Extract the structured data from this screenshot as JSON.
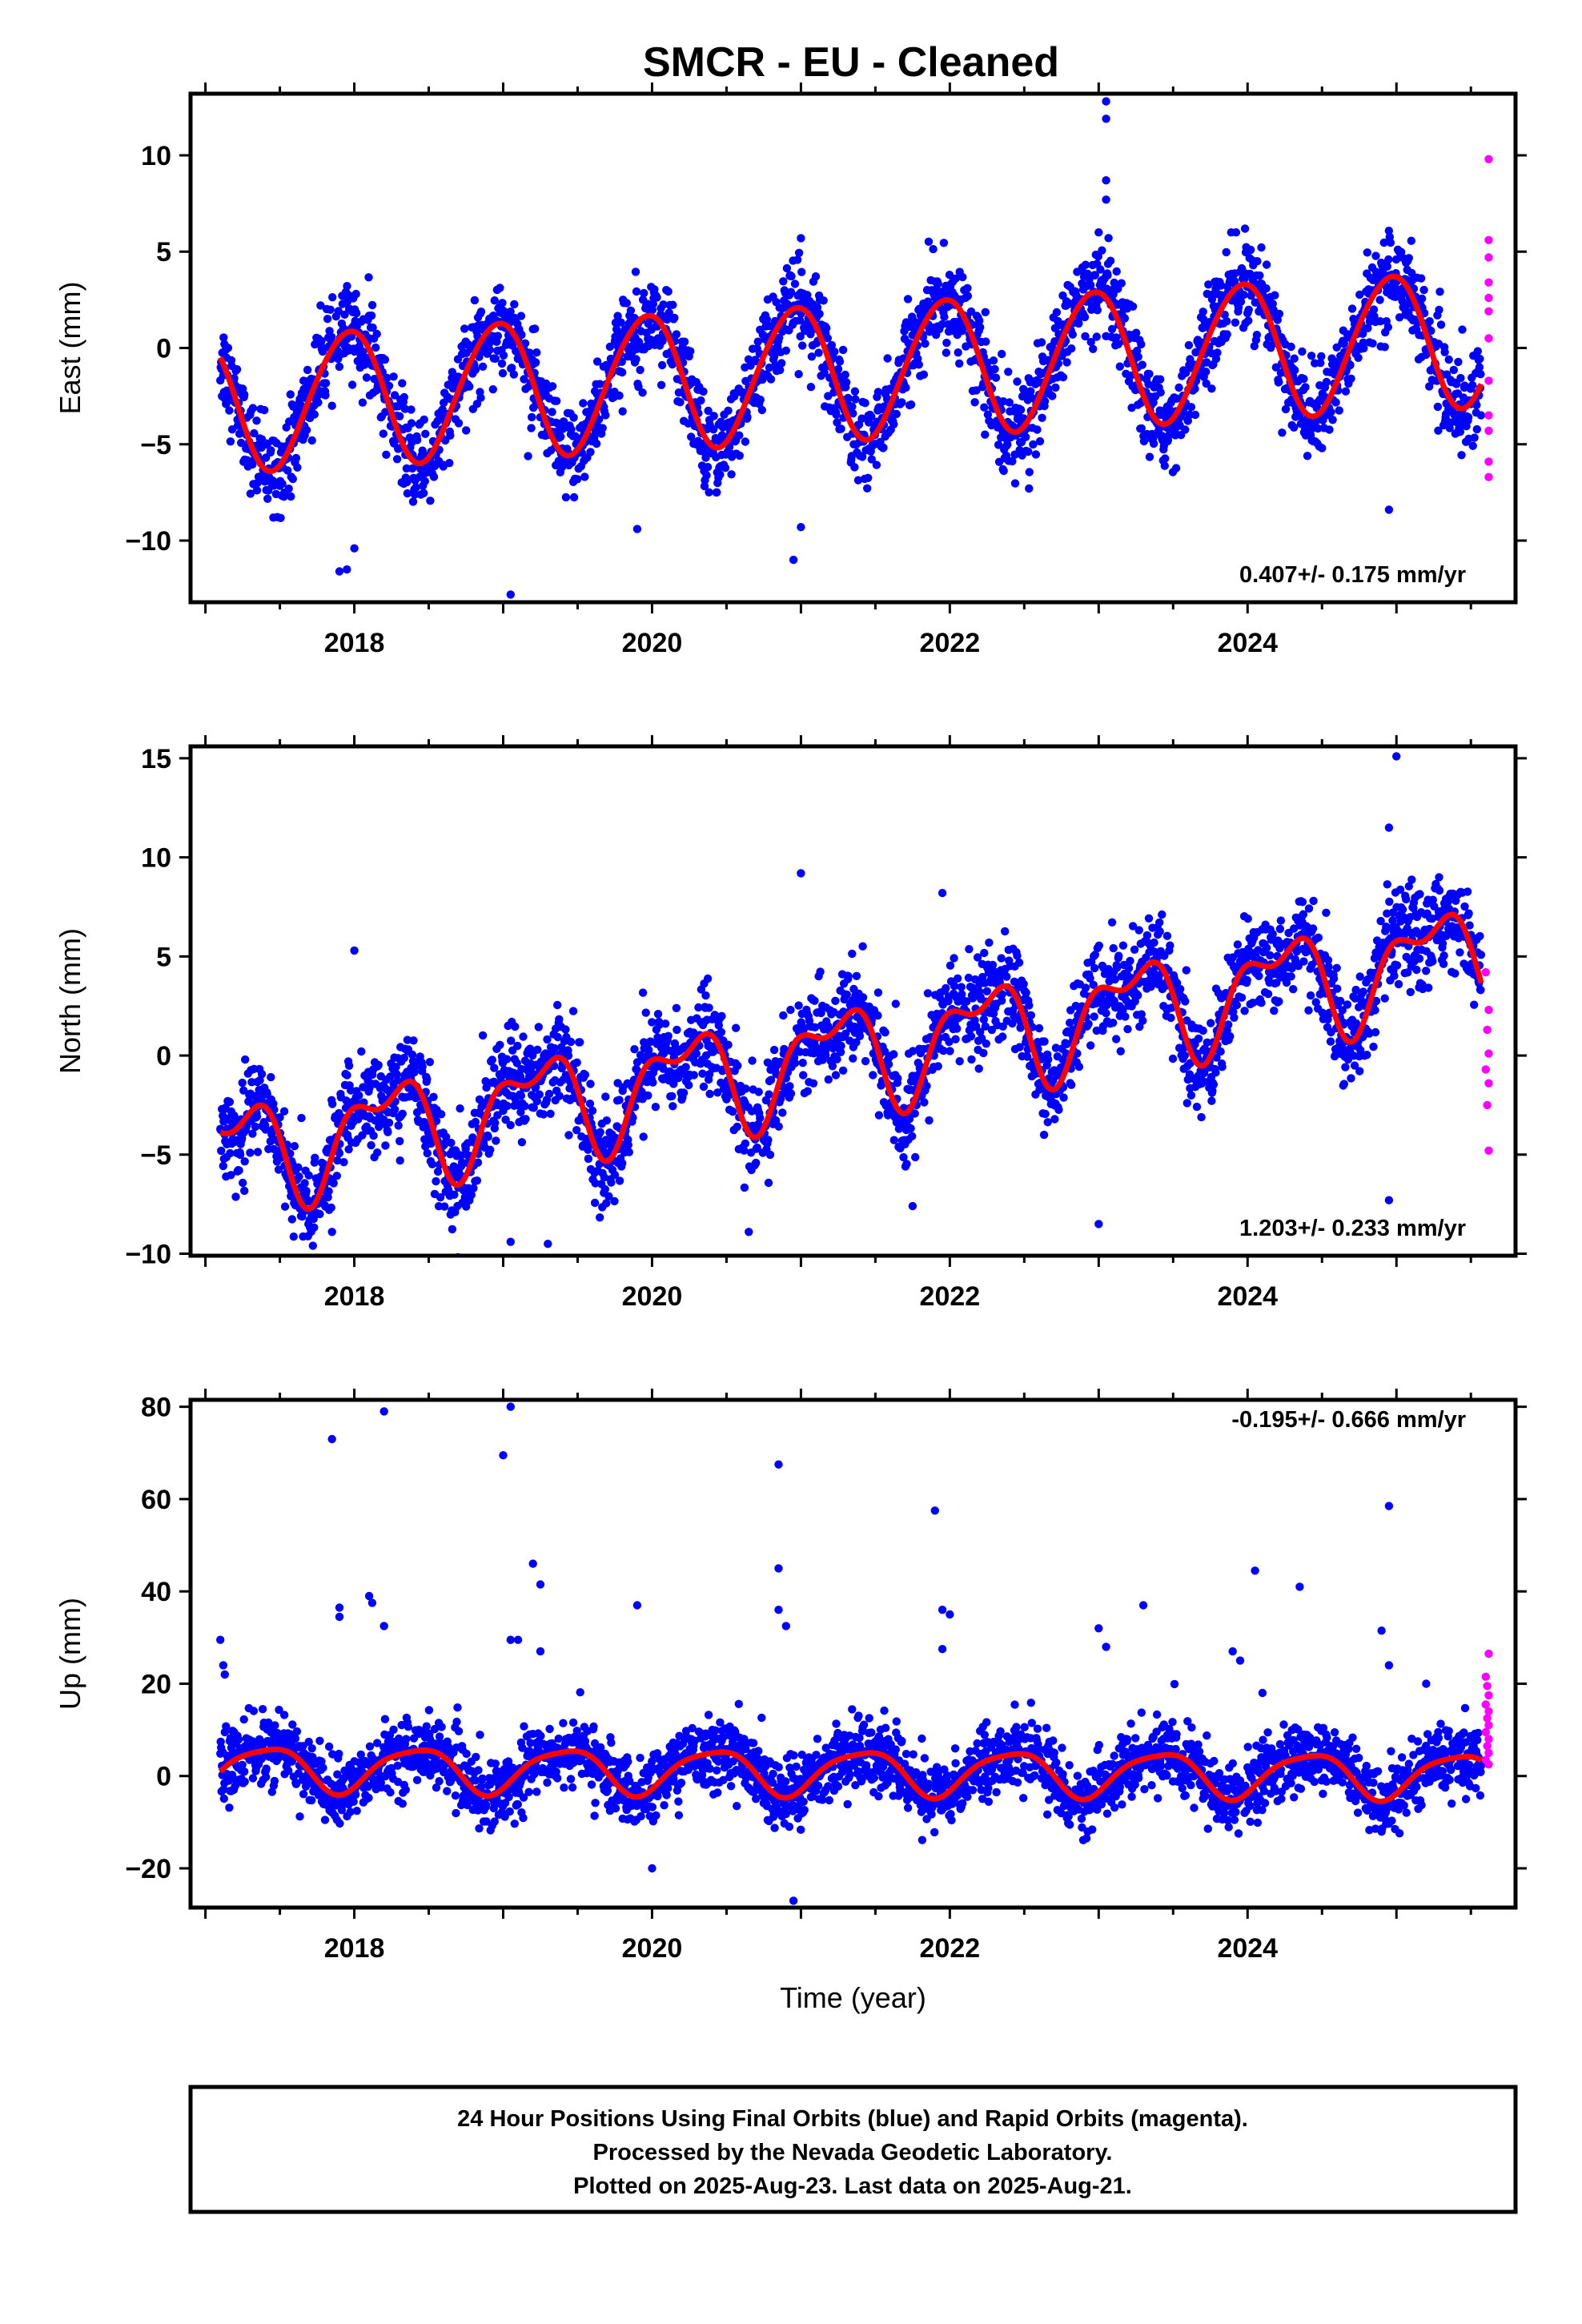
{
  "title": "SMCR  - EU - Cleaned",
  "footer": {
    "lines": [
      "24 Hour Positions Using Final Orbits (blue) and Rapid Orbits (magenta).",
      "Processed by the Nevada Geodetic Laboratory.",
      "Plotted on 2025-Aug-23. Last data on 2025-Aug-21."
    ]
  },
  "colors": {
    "final": "#0000ff",
    "rapid": "#ff00ff",
    "fit": "#ff0000"
  },
  "chart_data": [
    {
      "type": "scatter",
      "ylabel": "East (mm)",
      "xlabel": "",
      "rate": "0.407+/- 0.175 mm/yr",
      "xlim": [
        2016.9,
        2025.8
      ],
      "ylim": [
        -13.2,
        13.2
      ],
      "xticks": [
        2018,
        2020,
        2022,
        2024
      ],
      "yticks": [
        -10,
        -5,
        0,
        5,
        10
      ],
      "fit": {
        "offset": -1.3,
        "rate": 0.407,
        "annual_amp": 3.5,
        "annual_phase": 1.85,
        "semi_amp": 0.25,
        "semi_phase": 0.0,
        "t0": 2021.0
      },
      "noise": 1.15,
      "outliers": [
        {
          "x": 2017.95,
          "y": -11.5
        },
        {
          "x": 2017.9,
          "y": -11.6
        },
        {
          "x": 2018.0,
          "y": -10.4
        },
        {
          "x": 2019.05,
          "y": -12.8
        },
        {
          "x": 2023.05,
          "y": 12.8
        },
        {
          "x": 2023.05,
          "y": 11.9
        },
        {
          "x": 2023.05,
          "y": 8.7
        },
        {
          "x": 2023.05,
          "y": 7.7
        },
        {
          "x": 2020.95,
          "y": -11.0
        },
        {
          "x": 2021.0,
          "y": -9.3
        },
        {
          "x": 2021.0,
          "y": 5.7
        },
        {
          "x": 2024.95,
          "y": -8.4
        },
        {
          "x": 2019.9,
          "y": -9.4
        },
        {
          "x": 2023.0,
          "y": 6.0
        }
      ],
      "rapid_points": [
        {
          "x": 2025.62,
          "y": 9.8
        },
        {
          "x": 2025.62,
          "y": 5.6
        },
        {
          "x": 2025.62,
          "y": 4.7
        },
        {
          "x": 2025.62,
          "y": 3.4
        },
        {
          "x": 2025.62,
          "y": 2.6
        },
        {
          "x": 2025.62,
          "y": 1.9
        },
        {
          "x": 2025.62,
          "y": 0.5
        },
        {
          "x": 2025.62,
          "y": -1.7
        },
        {
          "x": 2025.62,
          "y": -3.5
        },
        {
          "x": 2025.62,
          "y": -4.3
        },
        {
          "x": 2025.62,
          "y": -5.9
        },
        {
          "x": 2025.62,
          "y": -6.7
        }
      ]
    },
    {
      "type": "scatter",
      "ylabel": "North (mm)",
      "xlabel": "",
      "rate": "1.203+/- 0.233 mm/yr",
      "xlim": [
        2016.9,
        2025.8
      ],
      "ylim": [
        -10.1,
        15.6
      ],
      "xticks": [
        2018,
        2020,
        2022,
        2024
      ],
      "yticks": [
        -10,
        -5,
        0,
        5,
        10,
        15
      ],
      "fit": {
        "offset": -0.3,
        "rate": 1.203,
        "annual_amp": 2.3,
        "annual_phase": 0.2,
        "semi_amp": 1.2,
        "semi_phase": 2.4,
        "t0": 2021.0
      },
      "noise": 1.2,
      "outliers": [
        {
          "x": 2025.0,
          "y": 15.1
        },
        {
          "x": 2024.95,
          "y": 11.5
        },
        {
          "x": 2021.0,
          "y": 9.2
        },
        {
          "x": 2021.95,
          "y": 8.2
        },
        {
          "x": 2024.95,
          "y": -7.3
        },
        {
          "x": 2023.0,
          "y": -8.5
        },
        {
          "x": 2019.05,
          "y": -9.4
        },
        {
          "x": 2019.3,
          "y": -9.5
        },
        {
          "x": 2017.85,
          "y": -8.9
        },
        {
          "x": 2018.0,
          "y": 5.3
        },
        {
          "x": 2020.65,
          "y": -8.9
        },
        {
          "x": 2021.75,
          "y": -7.6
        }
      ],
      "rapid_points": [
        {
          "x": 2025.6,
          "y": 4.2
        },
        {
          "x": 2025.62,
          "y": 2.3
        },
        {
          "x": 2025.61,
          "y": 1.3
        },
        {
          "x": 2025.62,
          "y": 0.1
        },
        {
          "x": 2025.6,
          "y": -0.7
        },
        {
          "x": 2025.62,
          "y": -1.4
        },
        {
          "x": 2025.61,
          "y": -2.5
        },
        {
          "x": 2025.62,
          "y": -4.8
        }
      ]
    },
    {
      "type": "scatter",
      "ylabel": "Up (mm)",
      "xlabel": "Time (year)",
      "rate": "-0.195+/- 0.666 mm/yr",
      "xlim": [
        2016.9,
        2025.8
      ],
      "ylim": [
        -28.5,
        81.5
      ],
      "xticks": [
        2018,
        2020,
        2022,
        2024
      ],
      "yticks": [
        -20,
        0,
        20,
        40,
        60,
        80
      ],
      "fit": {
        "offset": 1.0,
        "rate": -0.195,
        "annual_amp": 4.8,
        "annual_phase": -1.0,
        "semi_amp": 1.0,
        "semi_phase": 0.0,
        "t0": 2021.0
      },
      "noise": 3.6,
      "outliers": [
        {
          "x": 2017.85,
          "y": 73
        },
        {
          "x": 2018.2,
          "y": 79
        },
        {
          "x": 2019.05,
          "y": 80
        },
        {
          "x": 2019.0,
          "y": 69.5
        },
        {
          "x": 2020.85,
          "y": 67.5
        },
        {
          "x": 2021.9,
          "y": 57.5
        },
        {
          "x": 2024.95,
          "y": 58.5
        },
        {
          "x": 2019.2,
          "y": 46
        },
        {
          "x": 2019.25,
          "y": 41.5
        },
        {
          "x": 2020.85,
          "y": 45
        },
        {
          "x": 2024.05,
          "y": 44.5
        },
        {
          "x": 2024.35,
          "y": 41
        },
        {
          "x": 2023.3,
          "y": 37
        },
        {
          "x": 2018.1,
          "y": 39
        },
        {
          "x": 2018.12,
          "y": 37.5
        },
        {
          "x": 2017.9,
          "y": 36.5
        },
        {
          "x": 2017.9,
          "y": 34.5
        },
        {
          "x": 2018.2,
          "y": 32.5
        },
        {
          "x": 2019.9,
          "y": 37
        },
        {
          "x": 2020.85,
          "y": 36
        },
        {
          "x": 2020.9,
          "y": 32.5
        },
        {
          "x": 2021.95,
          "y": 36
        },
        {
          "x": 2022.0,
          "y": 35
        },
        {
          "x": 2023.0,
          "y": 32
        },
        {
          "x": 2023.05,
          "y": 28
        },
        {
          "x": 2024.9,
          "y": 31.5
        },
        {
          "x": 2017.1,
          "y": 29.5
        },
        {
          "x": 2017.12,
          "y": 24
        },
        {
          "x": 2017.13,
          "y": 22
        },
        {
          "x": 2019.05,
          "y": 29.5
        },
        {
          "x": 2019.1,
          "y": 29.5
        },
        {
          "x": 2019.25,
          "y": 27
        },
        {
          "x": 2021.95,
          "y": 27.5
        },
        {
          "x": 2023.9,
          "y": 27
        },
        {
          "x": 2023.95,
          "y": 25
        },
        {
          "x": 2024.1,
          "y": 18
        },
        {
          "x": 2020.95,
          "y": -27
        },
        {
          "x": 2020.0,
          "y": -20
        },
        {
          "x": 2025.2,
          "y": 20
        },
        {
          "x": 2024.95,
          "y": 24
        }
      ],
      "rapid_points": [
        {
          "x": 2025.62,
          "y": 26.5
        },
        {
          "x": 2025.6,
          "y": 21.5
        },
        {
          "x": 2025.61,
          "y": 19.5
        },
        {
          "x": 2025.62,
          "y": 17.5
        },
        {
          "x": 2025.6,
          "y": 15.5
        },
        {
          "x": 2025.62,
          "y": 14
        },
        {
          "x": 2025.61,
          "y": 12.5
        },
        {
          "x": 2025.62,
          "y": 11
        },
        {
          "x": 2025.6,
          "y": 9.5
        },
        {
          "x": 2025.62,
          "y": 8
        },
        {
          "x": 2025.61,
          "y": 6.5
        },
        {
          "x": 2025.62,
          "y": 5
        },
        {
          "x": 2025.6,
          "y": 3.5
        },
        {
          "x": 2025.62,
          "y": 2.5
        }
      ]
    }
  ]
}
